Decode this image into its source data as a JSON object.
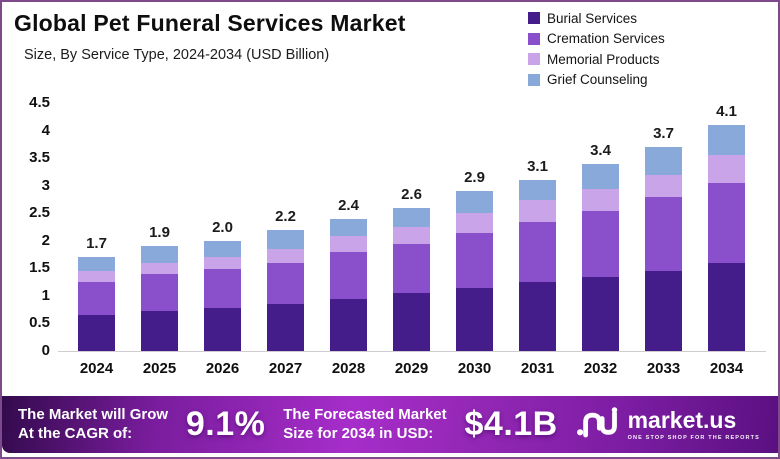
{
  "header": {
    "title": "Global Pet Funeral Services Market",
    "subtitle": "Size, By Service Type, 2024-2034 (USD Billion)"
  },
  "legend": [
    {
      "label": "Burial Services",
      "color": "#451d8b",
      "icon": "swatch-square"
    },
    {
      "label": "Cremation Services",
      "color": "#8a50cc",
      "icon": "swatch-square"
    },
    {
      "label": "Memorial Products",
      "color": "#c9a4e9",
      "icon": "swatch-square"
    },
    {
      "label": "Grief Counseling",
      "color": "#88a9da",
      "icon": "swatch-square"
    }
  ],
  "chart_data": {
    "type": "bar",
    "stacked": true,
    "title": "Global Pet Funeral Services Market",
    "subtitle": "Size, By Service Type, 2024-2034 (USD Billion)",
    "xlabel": "",
    "ylabel": "USD Billion",
    "ylim": [
      0,
      4.5
    ],
    "y_ticks": [
      "4.5",
      "4",
      "3.5",
      "3",
      "2.5",
      "2",
      "1.5",
      "1",
      "0.5",
      "0"
    ],
    "grid": false,
    "legend_position": "top-right",
    "categories": [
      "2024",
      "2025",
      "2026",
      "2027",
      "2028",
      "2029",
      "2030",
      "2031",
      "2032",
      "2033",
      "2034"
    ],
    "series": [
      {
        "name": "Burial Services",
        "color": "#451d8b",
        "values": [
          0.65,
          0.72,
          0.78,
          0.85,
          0.95,
          1.05,
          1.15,
          1.25,
          1.35,
          1.45,
          1.6
        ]
      },
      {
        "name": "Cremation Services",
        "color": "#8a50cc",
        "values": [
          0.6,
          0.68,
          0.7,
          0.75,
          0.85,
          0.9,
          1.0,
          1.1,
          1.2,
          1.35,
          1.45
        ]
      },
      {
        "name": "Memorial Products",
        "color": "#c9a4e9",
        "values": [
          0.2,
          0.2,
          0.22,
          0.25,
          0.28,
          0.3,
          0.35,
          0.4,
          0.4,
          0.4,
          0.5
        ]
      },
      {
        "name": "Grief Counseling",
        "color": "#88a9da",
        "values": [
          0.25,
          0.3,
          0.3,
          0.35,
          0.32,
          0.35,
          0.4,
          0.35,
          0.45,
          0.5,
          0.55
        ]
      }
    ],
    "totals": [
      1.7,
      1.9,
      2.0,
      2.2,
      2.4,
      2.6,
      2.9,
      3.1,
      3.4,
      3.7,
      4.1
    ]
  },
  "footer": {
    "cagr_label_line1": "The Market will Grow",
    "cagr_label_line2": "At the CAGR of:",
    "cagr_value": "9.1%",
    "forecast_label_line1": "The Forecasted Market",
    "forecast_label_line2": "Size for 2034 in USD:",
    "forecast_value": "$4.1B",
    "brand": "market.us",
    "brand_tagline": "ONE STOP SHOP FOR THE REPORTS"
  },
  "colors": {
    "frame_border": "#7e4a8c",
    "banner_gradient_left": "#330a4d",
    "banner_gradient_center": "#a62dc9",
    "banner_gradient_right": "#5a1080",
    "baseline": "#cfcdd1"
  }
}
